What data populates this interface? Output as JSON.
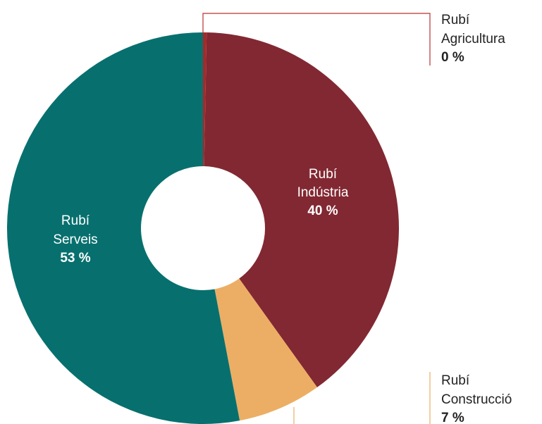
{
  "chart_data": {
    "type": "pie",
    "variant": "donut",
    "categories": [
      "Rubí Agricultura",
      "Rubí Indústria",
      "Rubí Construcció",
      "Rubí Serveis"
    ],
    "values": [
      0,
      40,
      7,
      53
    ],
    "unit": "%",
    "slices": [
      {
        "line1": "Rubí",
        "line2": "Agricultura",
        "value_label": "0 %",
        "value": 0.3,
        "color": "#A52A2A",
        "label_placement": "outside"
      },
      {
        "line1": "Rubí",
        "line2": "Indústria",
        "value_label": "40 %",
        "value": 39.8,
        "color": "#822832",
        "label_placement": "inside",
        "label_color": "#ffffff"
      },
      {
        "line1": "Rubí",
        "line2": "Construcció",
        "value_label": "7 %",
        "value": 6.9,
        "color": "#ECAE64",
        "label_placement": "outside"
      },
      {
        "line1": "Rubí",
        "line2": "Serveis",
        "value_label": "53 %",
        "value": 53.0,
        "color": "#07706E",
        "label_placement": "inside",
        "label_color": "#ffffff"
      }
    ]
  }
}
